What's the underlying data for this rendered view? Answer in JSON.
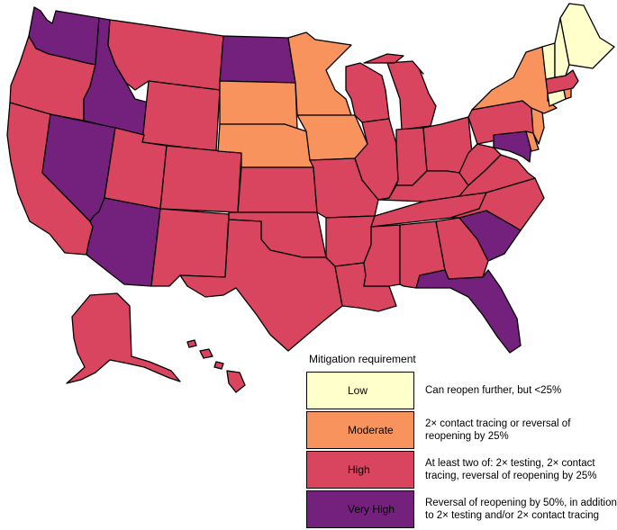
{
  "legend": {
    "title": "Mitigation requirement",
    "items": [
      {
        "level": "Low",
        "color": "#ffffcc",
        "description": "Can reopen further, but <25%"
      },
      {
        "level": "Moderate",
        "color": "#f9935e",
        "description": "2× contact tracing or reversal of reopening by 25%"
      },
      {
        "level": "High",
        "color": "#d9445f",
        "description": "At least two of: 2× testing, 2× contact tracing, reversal of reopening by 25%"
      },
      {
        "level": "Very High",
        "color": "#74217d",
        "description": "Reversal of reopening by 50%, in addition to 2× testing and/or 2× contact tracing"
      }
    ]
  },
  "map_data": {
    "type": "choropleth",
    "states": {
      "ME": "Low",
      "NH": "Low",
      "VT": "Low",
      "CT": "Low",
      "NY": "Moderate",
      "NJ": "Moderate",
      "DE": "Moderate",
      "RI": "Moderate",
      "MN": "Moderate",
      "IA": "Moderate",
      "NE": "Moderate",
      "SD": "Moderate",
      "WA": "Very High",
      "ID": "Very High",
      "NV": "Very High",
      "AZ": "Very High",
      "ND": "Very High",
      "SC": "Very High",
      "FL": "Very High",
      "MD": "Very High",
      "OR": "High",
      "CA": "High",
      "MT": "High",
      "WY": "High",
      "UT": "High",
      "CO": "High",
      "NM": "High",
      "TX": "High",
      "OK": "High",
      "KS": "High",
      "MO": "High",
      "AR": "High",
      "LA": "High",
      "MS": "High",
      "AL": "High",
      "GA": "High",
      "TN": "High",
      "KY": "High",
      "NC": "High",
      "VA": "High",
      "WV": "High",
      "OH": "High",
      "IN": "High",
      "IL": "High",
      "WI": "High",
      "MI": "High",
      "PA": "High",
      "MA": "High",
      "AK": "High",
      "HI": "High"
    }
  }
}
